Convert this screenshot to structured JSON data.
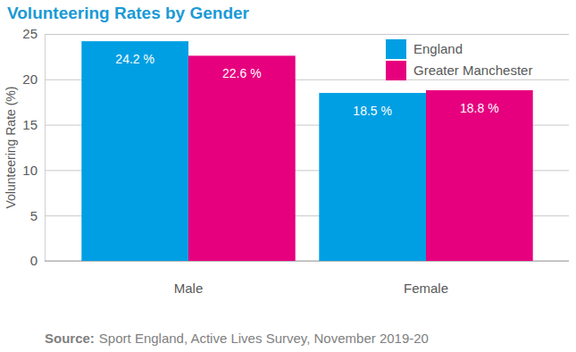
{
  "chart_data": {
    "type": "bar",
    "title": "Volunteering Rates by Gender",
    "y_label": "Volunteering Rate (%)",
    "categories": [
      "Male",
      "Female"
    ],
    "series": [
      {
        "name": "England",
        "color": "#009fe3",
        "values": [
          24.2,
          18.5
        ],
        "value_labels": [
          "24.2 %",
          "18.5 %"
        ]
      },
      {
        "name": "Greater Manchester",
        "color": "#e6007e",
        "values": [
          22.6,
          18.8
        ],
        "value_labels": [
          "22.6 %",
          "18.8 %"
        ]
      }
    ],
    "ylim": [
      0,
      25
    ],
    "yticks": [
      0,
      5,
      10,
      15,
      20,
      25
    ],
    "grid": true,
    "legend": "top-right",
    "data_labels": true,
    "source": {
      "label": "Source:",
      "text": "Sport England, Active Lives Survey, November 2019-20"
    }
  }
}
